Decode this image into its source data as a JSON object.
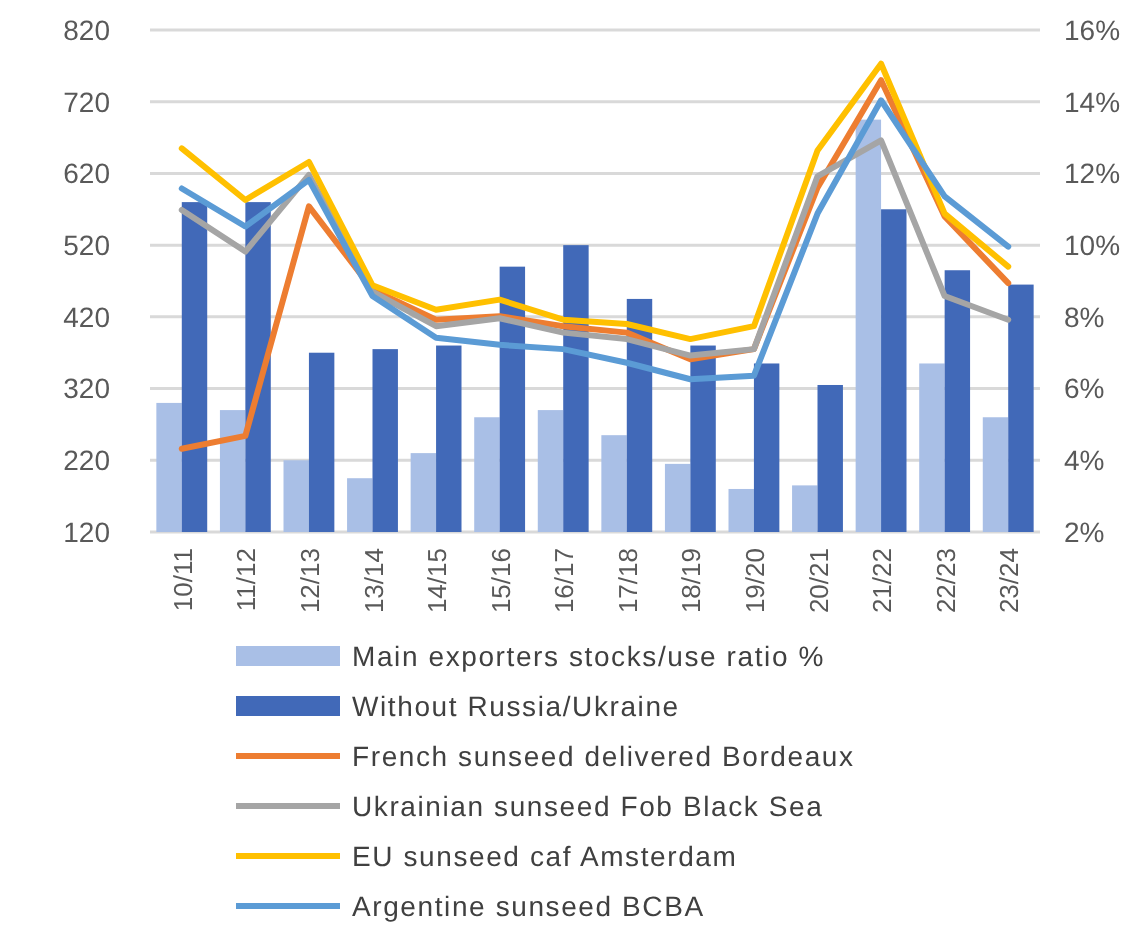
{
  "chart_data": {
    "type": "bar",
    "categories": [
      "10/11",
      "11/12",
      "12/13",
      "13/14",
      "14/15",
      "15/16",
      "16/17",
      "17/18",
      "18/19",
      "19/20",
      "20/21",
      "21/22",
      "22/23",
      "23/24"
    ],
    "series": [
      {
        "name": "Main exporters stocks/use ratio %",
        "axis": "y2",
        "color": "#a9bfe6",
        "values": [
          5.6,
          5.4,
          4.0,
          3.5,
          4.2,
          5.2,
          5.4,
          4.7,
          3.9,
          3.2,
          3.3,
          13.5,
          6.7,
          5.2
        ]
      },
      {
        "name": "Without Russia/Ukraine",
        "axis": "y2",
        "color": "#4169b8",
        "values": [
          11.2,
          11.2,
          7.0,
          7.1,
          7.2,
          9.4,
          10.0,
          8.5,
          7.2,
          6.7,
          6.1,
          11.0,
          9.3,
          8.9
        ]
      },
      {
        "name": "French sunseed delivered Bordeaux",
        "type": "line",
        "color": "#ed7d31",
        "values": [
          236,
          254,
          574,
          458,
          416,
          421,
          407,
          398,
          361,
          375,
          600,
          750,
          560,
          467
        ]
      },
      {
        "name": "Ukrainian sunseed Fob Black Sea",
        "type": "line",
        "color": "#a5a5a5",
        "values": [
          569,
          511,
          618,
          455,
          407,
          418,
          398,
          389,
          366,
          375,
          616,
          666,
          449,
          416
        ]
      },
      {
        "name": "EU sunseed caf Amsterdam",
        "type": "line",
        "color": "#ffc000",
        "values": [
          655,
          583,
          636,
          464,
          430,
          444,
          416,
          410,
          389,
          407,
          652,
          773,
          564,
          490
        ]
      },
      {
        "name": "Argentine sunseed BCBA",
        "type": "line",
        "color": "#5b9bd5",
        "values": [
          599,
          546,
          611,
          449,
          391,
          381,
          375,
          356,
          333,
          338,
          564,
          722,
          588,
          518
        ]
      }
    ],
    "ylim": [
      120,
      820
    ],
    "yticks": [
      120,
      220,
      320,
      420,
      520,
      620,
      720,
      820
    ],
    "y2lim": [
      2,
      16
    ],
    "y2ticks": [
      {
        "value": 2,
        "label": "2%"
      },
      {
        "value": 4,
        "label": "4%"
      },
      {
        "value": 6,
        "label": "6%"
      },
      {
        "value": 8,
        "label": "8%"
      },
      {
        "value": 10,
        "label": "10%"
      },
      {
        "value": 12,
        "label": "12%"
      },
      {
        "value": 14,
        "label": "14%"
      },
      {
        "value": 16,
        "label": "16%"
      }
    ],
    "grid": "y",
    "legend": "bottom",
    "line_style": "solid"
  }
}
